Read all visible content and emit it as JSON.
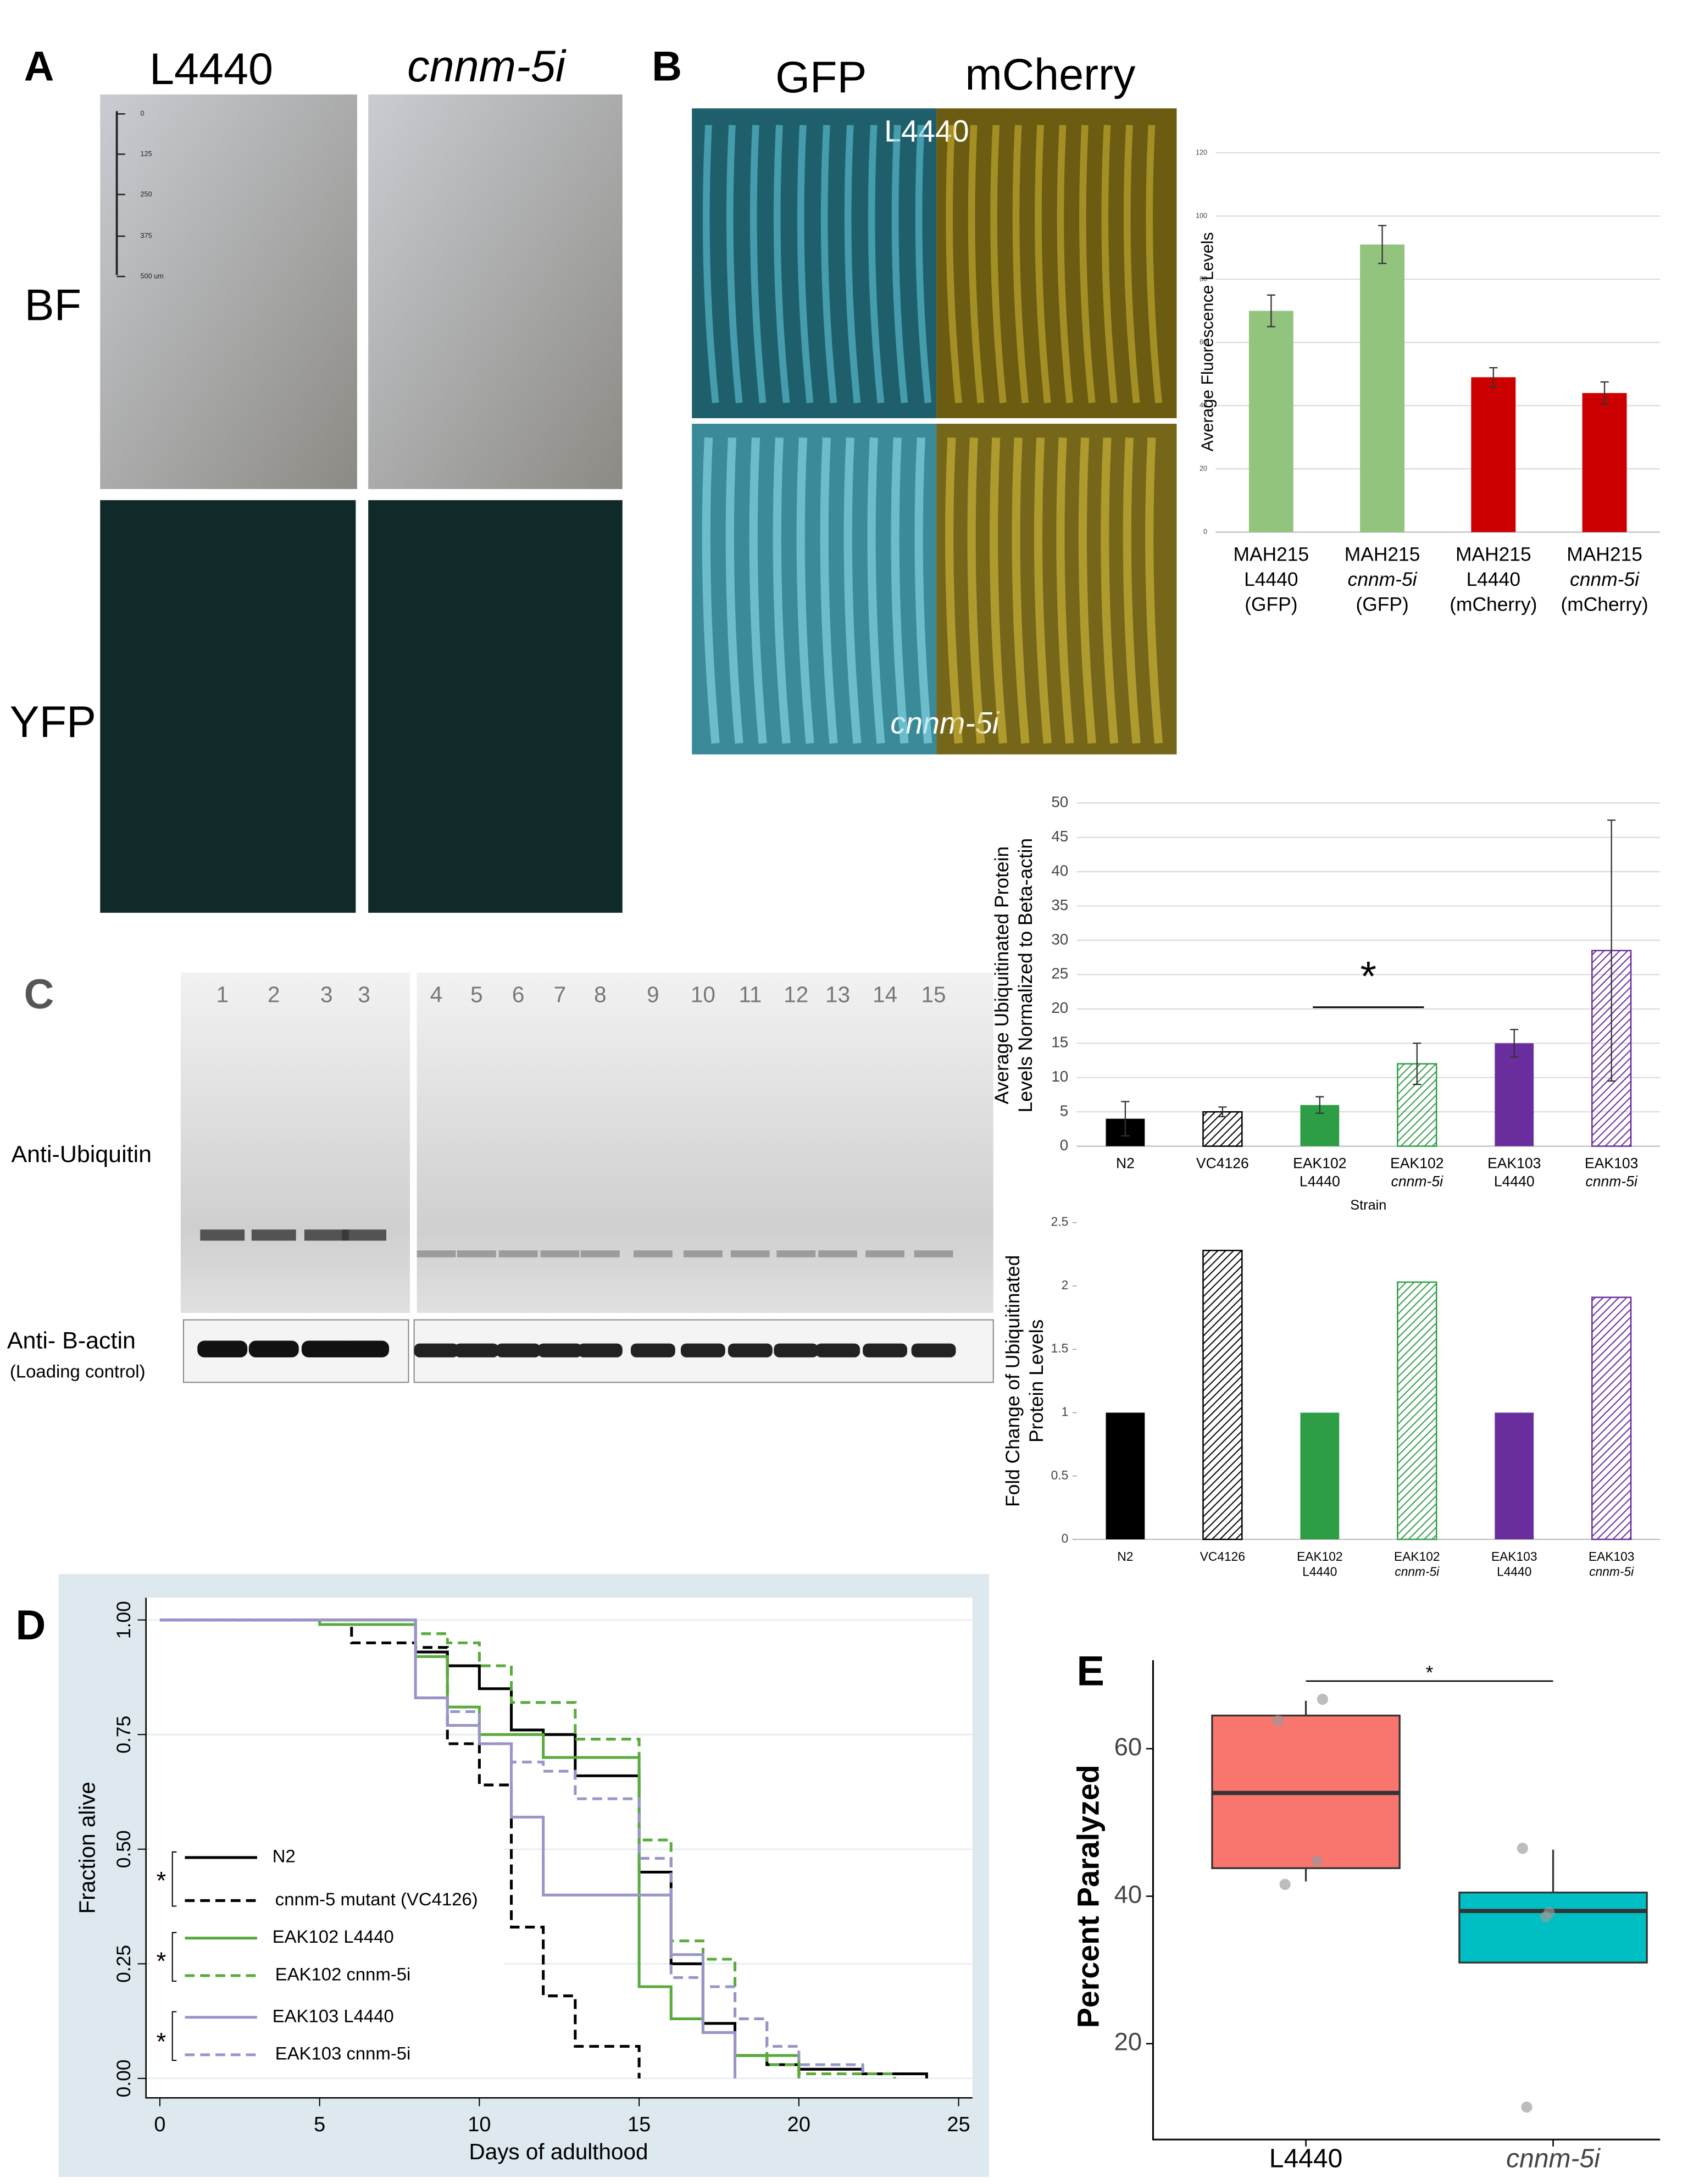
{
  "figure": {
    "panel_labels": [
      "A",
      "B",
      "C",
      "D",
      "E"
    ],
    "A": {
      "columns": [
        "L4440",
        "cnnm-5i"
      ],
      "rows": [
        "BF",
        "YFP"
      ],
      "scale_bar": [
        "0",
        "125",
        "250",
        "375",
        "500 um"
      ]
    },
    "B": {
      "columns": [
        "GFP",
        "mCherry"
      ],
      "rows": [
        "L4440",
        "cnnm-5i"
      ]
    },
    "C": {
      "lanes_left": [
        "1",
        "2",
        "3",
        "3"
      ],
      "lanes_right": [
        "4",
        "5",
        "6",
        "7",
        "8",
        "9",
        "10",
        "11",
        "12",
        "13",
        "14",
        "15"
      ],
      "antibodies": [
        "Anti-Ubiquitin",
        "Anti- B-actin"
      ],
      "note": "(Loading control)"
    }
  },
  "chart_data": [
    {
      "type": "bar",
      "ylabel": "Average Fluorescence Levels",
      "categories": [
        [
          "MAH215",
          "L4440",
          "(GFP)"
        ],
        [
          "MAH215",
          "cnnm-5i",
          "(GFP)"
        ],
        [
          "MAH215",
          "L4440",
          "(mCherry)"
        ],
        [
          "MAH215",
          "cnnm-5i",
          "(mCherry)"
        ]
      ],
      "values": [
        70,
        91,
        49,
        44
      ],
      "errors": [
        5,
        6,
        3,
        3.5
      ],
      "colors": [
        "#93c47d",
        "#93c47d",
        "#cc0000",
        "#cc0000"
      ],
      "ylim": [
        0,
        120
      ],
      "yticks": [
        0,
        20,
        40,
        60,
        80,
        100,
        120
      ],
      "grid": true
    },
    {
      "type": "bar",
      "ylabel": [
        "Average Ubiquitinated Protein",
        "Levels Normalized to Beta-actin"
      ],
      "xlabel": "Strain",
      "categories": [
        [
          "N2"
        ],
        [
          "VC4126"
        ],
        [
          "EAK102",
          "L4440"
        ],
        [
          "EAK102",
          "cnnm-5i"
        ],
        [
          "EAK103",
          "L4440"
        ],
        [
          "EAK103",
          "cnnm-5i"
        ]
      ],
      "values": [
        4,
        5,
        6,
        12,
        15,
        28.5
      ],
      "errors": [
        2.5,
        0.7,
        1.2,
        3,
        2,
        19
      ],
      "colors": [
        "#000000",
        "#000000",
        "#2e9e46",
        "#2e9e46",
        "#6a2d9e",
        "#6a2d9e"
      ],
      "hatched": [
        false,
        true,
        false,
        true,
        false,
        true
      ],
      "ylim": [
        0,
        50
      ],
      "yticks": [
        0,
        5,
        10,
        15,
        20,
        25,
        30,
        35,
        40,
        45,
        50
      ],
      "grid": true,
      "annotation": "*"
    },
    {
      "type": "bar",
      "ylabel": [
        "Fold Change of Ubiquitinated",
        "Protein Levels"
      ],
      "categories": [
        [
          "N2"
        ],
        [
          "VC4126"
        ],
        [
          "EAK102",
          "L4440"
        ],
        [
          "EAK102",
          "cnnm-5i"
        ],
        [
          "EAK103",
          "L4440"
        ],
        [
          "EAK103",
          "cnnm-5i"
        ]
      ],
      "values": [
        1,
        2.28,
        1,
        2.03,
        1,
        1.91
      ],
      "colors": [
        "#000000",
        "#000000",
        "#2e9e46",
        "#2e9e46",
        "#6a2d9e",
        "#6a2d9e"
      ],
      "hatched": [
        false,
        true,
        false,
        true,
        false,
        true
      ],
      "ylim": [
        0,
        2.5
      ],
      "yticks": [
        0,
        0.5,
        1,
        1.5,
        2,
        2.5
      ],
      "grid": false
    },
    {
      "type": "line",
      "step": true,
      "xlabel": "Days of adulthood",
      "ylabel": "Fraction alive",
      "xlim": [
        0,
        25
      ],
      "xticks": [
        0,
        5,
        10,
        15,
        20,
        25
      ],
      "ylim": [
        0,
        1
      ],
      "yticks": [
        {
          "value": 0,
          "label": "0.00"
        },
        {
          "value": 0.25,
          "label": "0.25"
        },
        {
          "value": 0.5,
          "label": "0.50"
        },
        {
          "value": 0.75,
          "label": "0.75"
        },
        {
          "value": 1,
          "label": "1.00"
        }
      ],
      "grid": true,
      "annotations": [
        "*",
        "*",
        "*"
      ],
      "series": [
        {
          "name": "N2",
          "color": "#000000",
          "dashed": false,
          "x": [
            0,
            8,
            9,
            10,
            11,
            12,
            13,
            15,
            16,
            17,
            18,
            19,
            20,
            22,
            24
          ],
          "values": [
            1,
            0.93,
            0.9,
            0.85,
            0.76,
            0.75,
            0.66,
            0.45,
            0.25,
            0.12,
            0.05,
            0.03,
            0.02,
            0.01,
            0
          ]
        },
        {
          "name": "cnnm-5 mutant (VC4126)",
          "color": "#000000",
          "dashed": true,
          "x": [
            0,
            6,
            8,
            9,
            10,
            11,
            12,
            13,
            15
          ],
          "values": [
            1,
            0.95,
            0.94,
            0.73,
            0.64,
            0.33,
            0.18,
            0.07,
            0
          ]
        },
        {
          "name": "EAK102 L4440",
          "color": "#5aab3c",
          "dashed": false,
          "x": [
            0,
            5,
            8,
            9,
            10,
            12,
            15,
            16,
            17,
            18,
            20
          ],
          "values": [
            1,
            0.99,
            0.92,
            0.81,
            0.75,
            0.7,
            0.2,
            0.13,
            0.1,
            0.05,
            0
          ]
        },
        {
          "name": "EAK102 cnnm-5i",
          "color": "#5aab3c",
          "dashed": true,
          "x": [
            0,
            5,
            8,
            9,
            10,
            11,
            13,
            15,
            16,
            17,
            18,
            19,
            20,
            23
          ],
          "values": [
            1,
            0.99,
            0.97,
            0.95,
            0.9,
            0.82,
            0.74,
            0.52,
            0.3,
            0.26,
            0.13,
            0.03,
            0.01,
            0
          ]
        },
        {
          "name": "EAK103 L4440",
          "color": "#9a95c8",
          "dashed": false,
          "x": [
            0,
            8,
            9,
            10,
            11,
            12,
            15,
            16,
            17,
            18
          ],
          "values": [
            1,
            0.83,
            0.77,
            0.73,
            0.57,
            0.4,
            0.4,
            0.27,
            0.1,
            0
          ]
        },
        {
          "name": "EAK103 cnnm-5i",
          "color": "#9a95c8",
          "dashed": true,
          "x": [
            0,
            8,
            9,
            10,
            11,
            12,
            13,
            15,
            16,
            17,
            18,
            19,
            20,
            22
          ],
          "values": [
            1,
            0.83,
            0.8,
            0.73,
            0.69,
            0.67,
            0.61,
            0.48,
            0.22,
            0.2,
            0.13,
            0.07,
            0.03,
            0.01
          ]
        }
      ]
    },
    {
      "type": "box",
      "ylabel": "Percent Paralyzed",
      "categories": [
        "L4440",
        "cnnm-5i"
      ],
      "colors": [
        "#f8766d",
        "#00bfc4"
      ],
      "boxes": [
        {
          "q1": 43.8,
          "median": 54,
          "q3": 64.5,
          "whisker_low": 42,
          "whisker_high": 66.5
        },
        {
          "q1": 31,
          "median": 38,
          "q3": 40.5,
          "whisker_low": null,
          "whisker_high": 46.3
        }
      ],
      "points": [
        [
          63.8,
          66.7,
          44.8,
          41.6
        ],
        [
          46.5,
          37.8,
          37.2,
          11.4
        ]
      ],
      "ylim": [
        7,
        72
      ],
      "yticks": [
        20,
        40,
        60
      ],
      "annotation": "*"
    }
  ]
}
